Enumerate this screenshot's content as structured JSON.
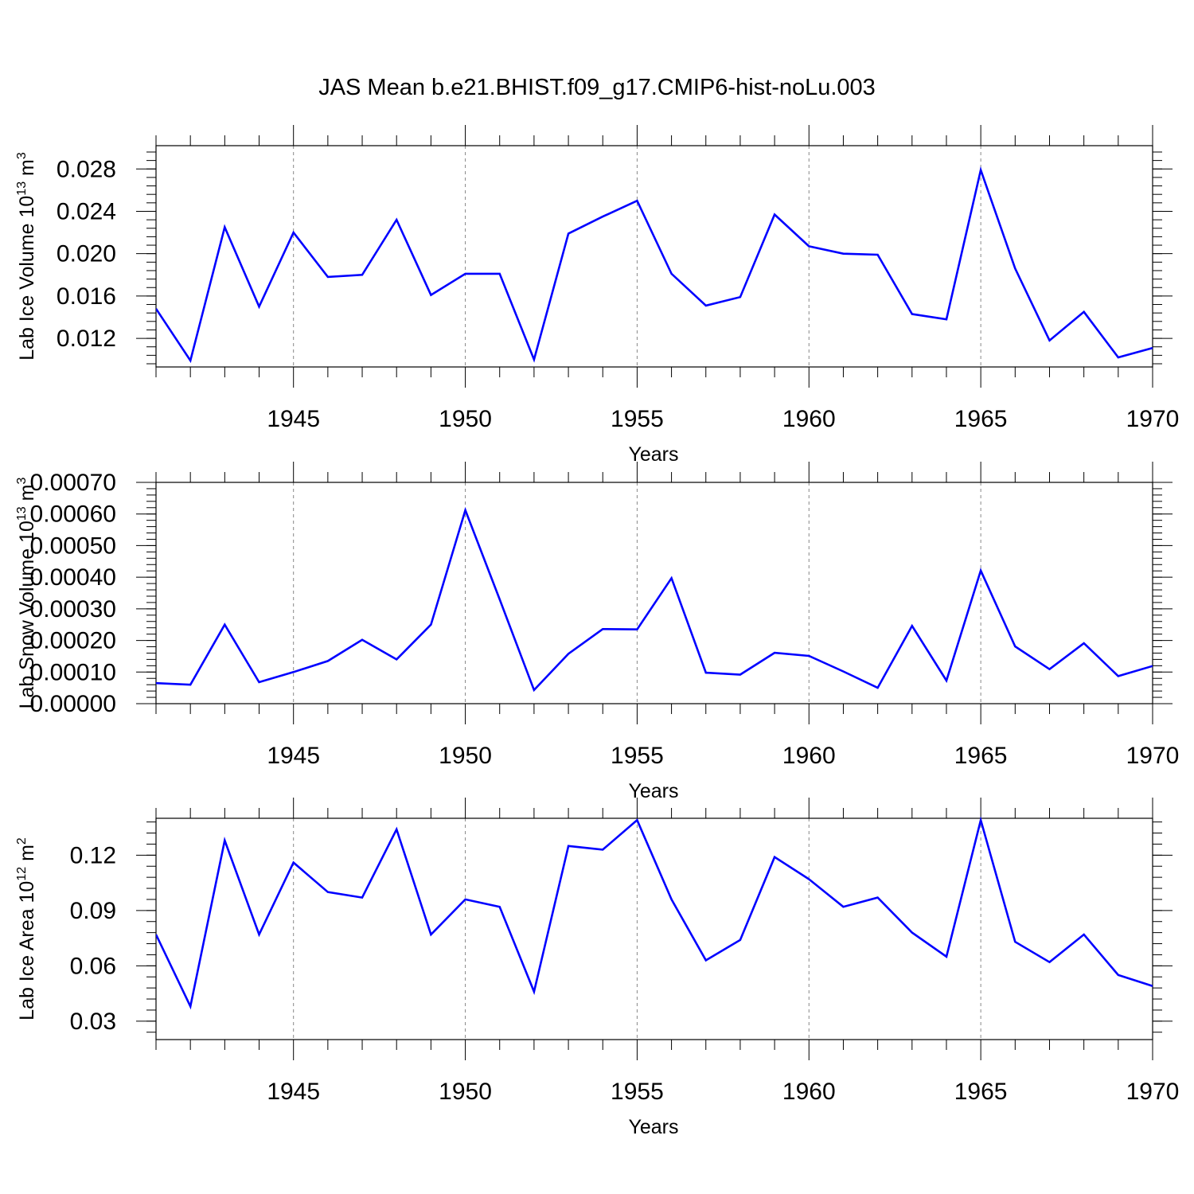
{
  "title": "JAS Mean b.e21.BHIST.f09_g17.CMIP6-hist-noLu.003",
  "colors": {
    "line": "#0000ff",
    "axis": "#000000",
    "grid": "#888888"
  },
  "chart_data": [
    {
      "type": "line",
      "ylabel": {
        "base": "Lab Ice Volume 10",
        "exp": "13",
        "unit": " m",
        "unit_exp": "3"
      },
      "xlabel": "Years",
      "xlim": [
        1941,
        1970
      ],
      "ylim": [
        0.0093,
        0.0302
      ],
      "y_major_ticks": [
        0.012,
        0.016,
        0.02,
        0.024,
        0.028
      ],
      "y_tick_labels": [
        "0.012",
        "0.016",
        "0.020",
        "0.024",
        "0.028"
      ],
      "y_minor_step": 0.0008,
      "x_major_ticks": [
        1945,
        1950,
        1955,
        1960,
        1965,
        1970
      ],
      "x_tick_labels": [
        "1945",
        "1950",
        "1955",
        "1960",
        "1965",
        "1970"
      ],
      "grid_x": [
        1945,
        1950,
        1955,
        1960,
        1965
      ],
      "series": [
        {
          "name": "Lab Ice Volume",
          "x": [
            1941,
            1942,
            1943,
            1944,
            1945,
            1946,
            1947,
            1948,
            1949,
            1950,
            1951,
            1952,
            1953,
            1954,
            1955,
            1956,
            1957,
            1958,
            1959,
            1960,
            1961,
            1962,
            1963,
            1964,
            1965,
            1966,
            1967,
            1968,
            1969,
            1970
          ],
          "values": [
            0.0148,
            0.0099,
            0.0225,
            0.015,
            0.022,
            0.0178,
            0.018,
            0.0232,
            0.0161,
            0.0181,
            0.0181,
            0.01,
            0.0219,
            0.0235,
            0.025,
            0.0181,
            0.0151,
            0.0159,
            0.0237,
            0.0207,
            0.02,
            0.0199,
            0.0143,
            0.0138,
            0.0279,
            0.0186,
            0.0118,
            0.0145,
            0.0102,
            0.0111
          ]
        }
      ]
    },
    {
      "type": "line",
      "ylabel": {
        "base": "Lab Snow Volume 10",
        "exp": "13",
        "unit": " m",
        "unit_exp": "3"
      },
      "xlabel": "Years",
      "xlim": [
        1941,
        1970
      ],
      "ylim": [
        0.0,
        0.0007
      ],
      "y_major_ticks": [
        0.0,
        0.0001,
        0.0002,
        0.0003,
        0.0004,
        0.0005,
        0.0006,
        0.0007
      ],
      "y_tick_labels": [
        "0.00000",
        "0.00010",
        "0.00020",
        "0.00030",
        "0.00040",
        "0.00050",
        "0.00060",
        "0.00070"
      ],
      "y_minor_step": 2e-05,
      "x_major_ticks": [
        1945,
        1950,
        1955,
        1960,
        1965,
        1970
      ],
      "x_tick_labels": [
        "1945",
        "1950",
        "1955",
        "1960",
        "1965",
        "1970"
      ],
      "grid_x": [
        1945,
        1950,
        1955,
        1960,
        1965
      ],
      "series": [
        {
          "name": "Lab Snow Volume",
          "x": [
            1941,
            1942,
            1943,
            1944,
            1945,
            1946,
            1947,
            1948,
            1949,
            1950,
            1951,
            1952,
            1953,
            1954,
            1955,
            1956,
            1957,
            1958,
            1959,
            1960,
            1961,
            1962,
            1963,
            1964,
            1965,
            1966,
            1967,
            1968,
            1969,
            1970
          ],
          "values": [
            6.5e-05,
            6e-05,
            0.00025,
            6.8e-05,
            0.0001,
            0.000135,
            0.000202,
            0.00014,
            0.00025,
            0.000612,
            0.00033,
            4.3e-05,
            0.000158,
            0.000236,
            0.000235,
            0.000397,
            9.8e-05,
            9.2e-05,
            0.000161,
            0.000151,
            0.000102,
            5e-05,
            0.000246,
            7.3e-05,
            0.000421,
            0.000181,
            0.000109,
            0.000191,
            8.7e-05,
            0.000119
          ]
        }
      ]
    },
    {
      "type": "line",
      "ylabel": {
        "base": "Lab Ice Area 10",
        "exp": "12",
        "unit": " m",
        "unit_exp": "2"
      },
      "xlabel": "Years",
      "xlim": [
        1941,
        1970
      ],
      "ylim": [
        0.02,
        0.14
      ],
      "y_major_ticks": [
        0.03,
        0.06,
        0.09,
        0.12
      ],
      "y_tick_labels": [
        "0.03",
        "0.06",
        "0.09",
        "0.12"
      ],
      "y_minor_step": 0.006,
      "x_major_ticks": [
        1945,
        1950,
        1955,
        1960,
        1965,
        1970
      ],
      "x_tick_labels": [
        "1945",
        "1950",
        "1955",
        "1960",
        "1965",
        "1970"
      ],
      "grid_x": [
        1945,
        1950,
        1955,
        1960,
        1965
      ],
      "series": [
        {
          "name": "Lab Ice Area",
          "x": [
            1941,
            1942,
            1943,
            1944,
            1945,
            1946,
            1947,
            1948,
            1949,
            1950,
            1951,
            1952,
            1953,
            1954,
            1955,
            1956,
            1957,
            1958,
            1959,
            1960,
            1961,
            1962,
            1963,
            1964,
            1965,
            1966,
            1967,
            1968,
            1969,
            1970
          ],
          "values": [
            0.077,
            0.038,
            0.128,
            0.077,
            0.116,
            0.1,
            0.097,
            0.134,
            0.077,
            0.096,
            0.092,
            0.046,
            0.125,
            0.123,
            0.139,
            0.096,
            0.063,
            0.074,
            0.119,
            0.107,
            0.092,
            0.097,
            0.078,
            0.065,
            0.139,
            0.073,
            0.062,
            0.077,
            0.055,
            0.049
          ]
        }
      ]
    }
  ]
}
